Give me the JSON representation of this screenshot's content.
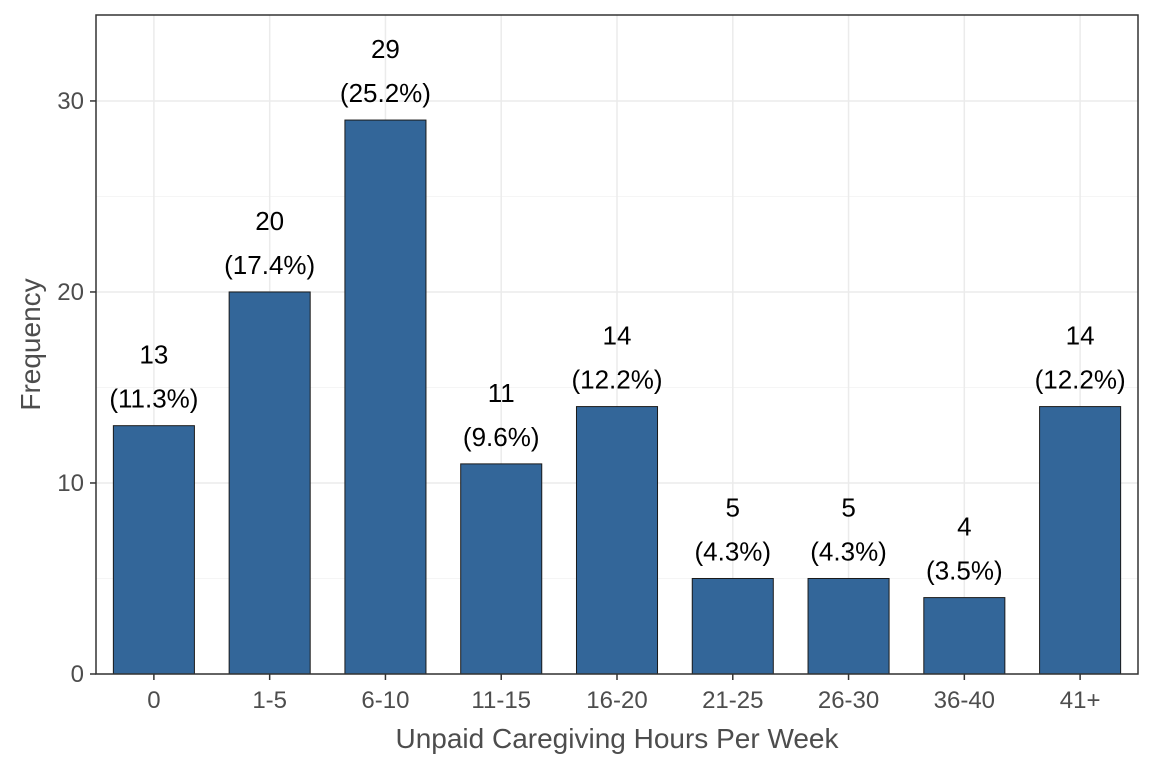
{
  "chart_data": {
    "type": "bar",
    "title": "",
    "xlabel": "Unpaid Caregiving Hours Per Week",
    "ylabel": "Frequency",
    "categories": [
      "0",
      "1-5",
      "6-10",
      "11-15",
      "16-20",
      "21-25",
      "26-30",
      "36-40",
      "41+"
    ],
    "values": [
      13,
      20,
      29,
      11,
      14,
      5,
      5,
      4,
      14
    ],
    "value_labels": [
      "13",
      "20",
      "29",
      "11",
      "14",
      "5",
      "5",
      "4",
      "14"
    ],
    "percent_labels": [
      "(11.3%)",
      "(17.4%)",
      "(25.2%)",
      "(9.6%)",
      "(12.2%)",
      "(4.3%)",
      "(4.3%)",
      "(3.5%)",
      "(12.2%)"
    ],
    "ylim": [
      0,
      34.5
    ],
    "yticks": [
      0,
      10,
      20,
      30
    ],
    "ytick_labels": [
      "0",
      "10",
      "20",
      "30"
    ],
    "grid": true,
    "legend": "none",
    "colors": {
      "bar_fill": "#336699",
      "bar_stroke": "#1a1a1a",
      "grid_major": "#ebebeb",
      "grid_minor": "#f5f5f5",
      "panel_border": "#333333"
    }
  }
}
